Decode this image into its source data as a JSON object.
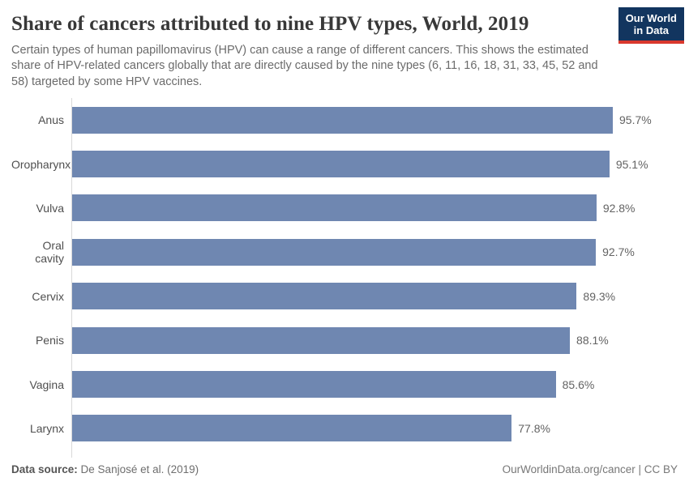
{
  "header": {
    "title": "Share of cancers attributed to nine HPV types, World, 2019",
    "subtitle": "Certain types of human papillomavirus (HPV) can cause a range of different cancers. This shows the estimated share of HPV-related cancers globally that are directly caused by the nine types (6, 11, 16, 18, 31, 33, 45, 52 and 58) targeted by some HPV vaccines.",
    "logo": {
      "line1": "Our World",
      "line2": "in Data",
      "bg_color": "#12355f",
      "accent_color": "#d9382d"
    }
  },
  "chart_data": {
    "type": "bar",
    "orientation": "horizontal",
    "title": "Share of cancers attributed to nine HPV types, World, 2019",
    "categories": [
      "Anus",
      "Oropharynx",
      "Vulva",
      "Oral cavity",
      "Cervix",
      "Penis",
      "Vagina",
      "Larynx"
    ],
    "values": [
      95.7,
      95.1,
      92.8,
      92.7,
      89.3,
      88.1,
      85.6,
      77.8
    ],
    "value_labels": [
      "95.7%",
      "95.1%",
      "92.8%",
      "92.7%",
      "89.3%",
      "88.1%",
      "85.6%",
      "77.8%"
    ],
    "unit": "%",
    "xlim": [
      0,
      100
    ],
    "grid": false,
    "legend": "none",
    "bar_color": "#6f87b1",
    "axis_color": "#d9d9d9"
  },
  "footer": {
    "source_label": "Data source:",
    "source_value": "De Sanjosé et al. (2019)",
    "license": "OurWorldinData.org/cancer | CC BY"
  }
}
